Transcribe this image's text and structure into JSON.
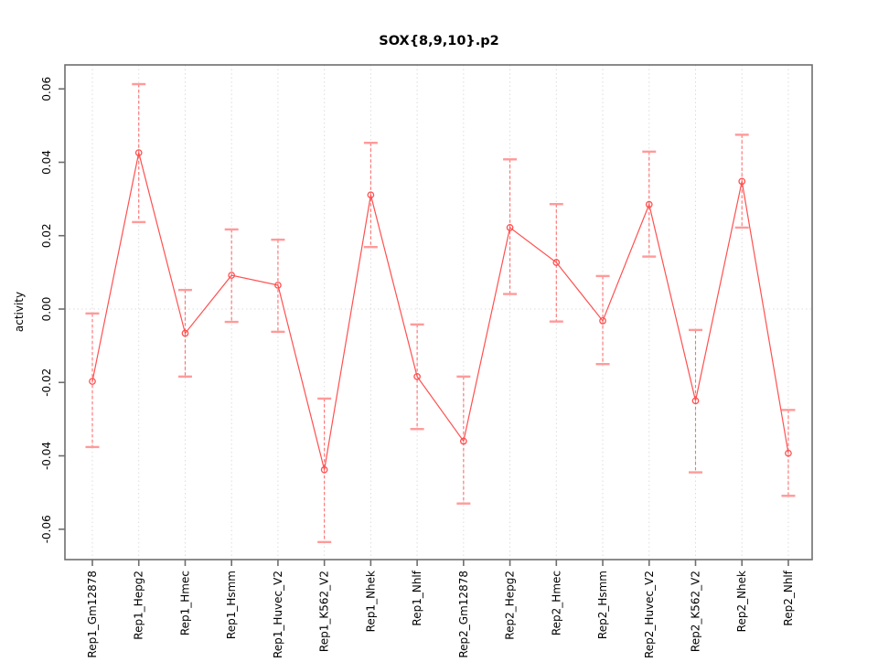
{
  "window": {
    "background": "#ffffff"
  },
  "chart_data": {
    "type": "line",
    "title": "SOX{8,9,10}.p2",
    "xlabel": "",
    "ylabel": "activity",
    "ylim": [
      -0.068,
      0.066
    ],
    "yticks": [
      -0.06,
      -0.04,
      -0.02,
      0.0,
      0.02,
      0.04,
      0.06
    ],
    "ytick_labels": [
      "-0.06",
      "-0.04",
      "-0.02",
      "0.00",
      "0.02",
      "0.04",
      "0.06"
    ],
    "grid": {
      "vertical_dotted_per_category": true,
      "horizontal_zero_line_dotted": true
    },
    "legend_position": "none",
    "marker": "open-circle",
    "error_bars": true,
    "categories": [
      "Rep1_Gm12878",
      "Rep1_Hepg2",
      "Rep1_Hmec",
      "Rep1_Hsmm",
      "Rep1_Huvec_V2",
      "Rep1_K562_V2",
      "Rep1_Nhek",
      "Rep1_Nhlf",
      "Rep2_Gm12878",
      "Rep2_Hepg2",
      "Rep2_Hmec",
      "Rep2_Hsmm",
      "Rep2_Huvec_V2",
      "Rep2_K562_V2",
      "Rep2_Nhek",
      "Rep2_Nhlf"
    ],
    "series": [
      {
        "name": "activity",
        "values": [
          -0.0197,
          0.0426,
          -0.0066,
          0.0092,
          0.0065,
          -0.0438,
          0.0311,
          -0.0184,
          -0.036,
          0.0222,
          0.0127,
          -0.0032,
          0.0285,
          -0.025,
          0.0348,
          -0.0393
        ],
        "upper": [
          -0.0012,
          0.0613,
          0.0052,
          0.0217,
          0.0189,
          -0.0244,
          0.0453,
          -0.0042,
          -0.0184,
          0.0408,
          0.0286,
          0.009,
          0.0429,
          -0.0057,
          0.0475,
          -0.0275
        ],
        "lower": [
          -0.0376,
          0.0237,
          -0.0184,
          -0.0035,
          -0.0062,
          -0.0635,
          0.0169,
          -0.0327,
          -0.053,
          0.0041,
          -0.0034,
          -0.015,
          0.0143,
          -0.0445,
          0.0222,
          -0.0509
        ]
      }
    ],
    "colors": {
      "line": "#ff5050",
      "point": "#ff5050",
      "error_line": "#ff6e6e",
      "error_cap": "#ff9a9a",
      "grid": "#dcdcdc",
      "axis": "#6e6e6e",
      "text": "#000000"
    }
  }
}
